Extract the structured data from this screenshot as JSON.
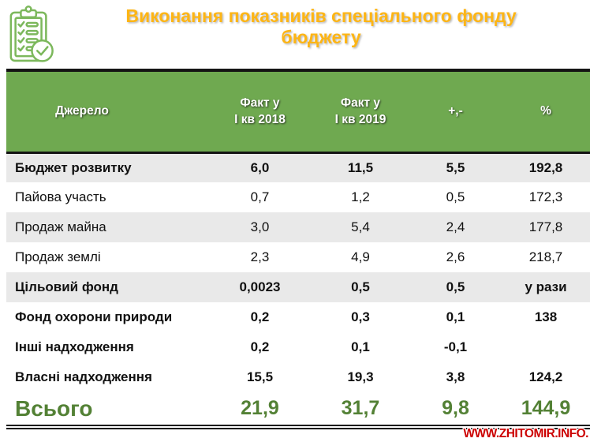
{
  "title": {
    "line1": "Виконання показників спеціального фонду",
    "line2": "бюджету"
  },
  "icons": {
    "header_icon": "checklist-clipboard-icon"
  },
  "colors": {
    "header_green": "#6fa950",
    "stripe_gray": "#e9e9e9",
    "total_green": "#538135",
    "title_gold": "#fdb515",
    "watermark_red": "#cc0000",
    "icon_green": "#7cb85c"
  },
  "table": {
    "headers": [
      "Джерело",
      "Факт у\nІ кв 2018",
      "Факт у\nІ кв 2019",
      "+,-",
      "%"
    ],
    "rows": [
      {
        "label": "Бюджет розвитку",
        "values": [
          "6,0",
          "11,5",
          "5,5",
          "192,8"
        ],
        "bold": true,
        "shaded": true
      },
      {
        "label": "Пайова участь",
        "values": [
          "0,7",
          "1,2",
          "0,5",
          "172,3"
        ],
        "bold": false,
        "shaded": false
      },
      {
        "label": "Продаж майна",
        "values": [
          "3,0",
          "5,4",
          "2,4",
          "177,8"
        ],
        "bold": false,
        "shaded": true
      },
      {
        "label": "Продаж землі",
        "values": [
          "2,3",
          "4,9",
          "2,6",
          "218,7"
        ],
        "bold": false,
        "shaded": false
      },
      {
        "label": "Цільовий фонд",
        "values": [
          "0,0023",
          "0,5",
          "0,5",
          "у рази"
        ],
        "bold": true,
        "shaded": true
      },
      {
        "label": "Фонд охорони природи",
        "values": [
          "0,2",
          "0,3",
          "0,1",
          "138"
        ],
        "bold": true,
        "shaded": false
      },
      {
        "label": "Інші надходження",
        "values": [
          "0,2",
          "0,1",
          "-0,1",
          ""
        ],
        "bold": true,
        "shaded": false
      },
      {
        "label": "Власні надходження",
        "values": [
          "15,5",
          "19,3",
          "3,8",
          "124,2"
        ],
        "bold": true,
        "shaded": false
      }
    ],
    "total": {
      "label": "Всього",
      "values": [
        "21,9",
        "31,7",
        "9,8",
        "144,9"
      ]
    }
  },
  "watermark": "WWW.ZHITOMIR.INFO."
}
